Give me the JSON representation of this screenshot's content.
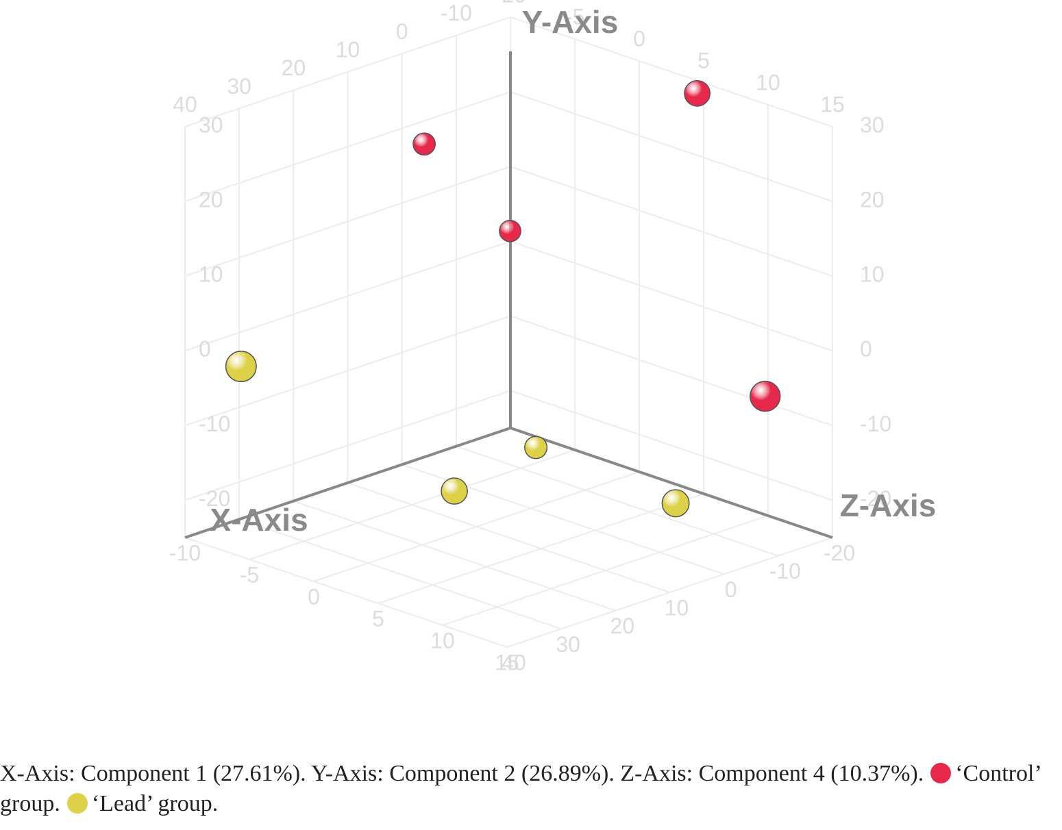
{
  "chart_data": {
    "type": "scatter3d",
    "x_label": "X-Axis",
    "y_label": "Y-Axis",
    "z_label": "Z-Axis",
    "xlim": [
      -20,
      40
    ],
    "xticks": [
      -20,
      -10,
      0,
      10,
      20,
      30,
      40
    ],
    "ylim": [
      -25,
      30
    ],
    "yticks": [
      -20,
      -10,
      0,
      10,
      20,
      30
    ],
    "zlim": [
      -10,
      15
    ],
    "zticks": [
      -10,
      -5,
      0,
      5,
      10,
      15
    ],
    "grid": true,
    "series": [
      {
        "name": "‘Control’ group.",
        "color": "#e8284a",
        "x": [
          -20,
          -4.1,
          -14,
          -14
        ],
        "y": [
          28.3,
          16.9,
          4.3,
          -6.2
        ],
        "z": [
          4.5,
          -10,
          -7.5,
          12.3
        ]
      },
      {
        "name": "‘Lead’ group.",
        "color": "#ddd148",
        "x": [
          35.6,
          -14,
          4,
          -14
        ],
        "y": [
          -1.7,
          -23.5,
          -24.2,
          -24.6
        ],
        "z": [
          -7.5,
          -5.5,
          -4.25,
          5.35
        ]
      }
    ],
    "caption": "X-Axis: Component 1 (27.61%). Y-Axis: Component 2 (26.89%). Z-Axis: Component 4 (10.37%)."
  }
}
